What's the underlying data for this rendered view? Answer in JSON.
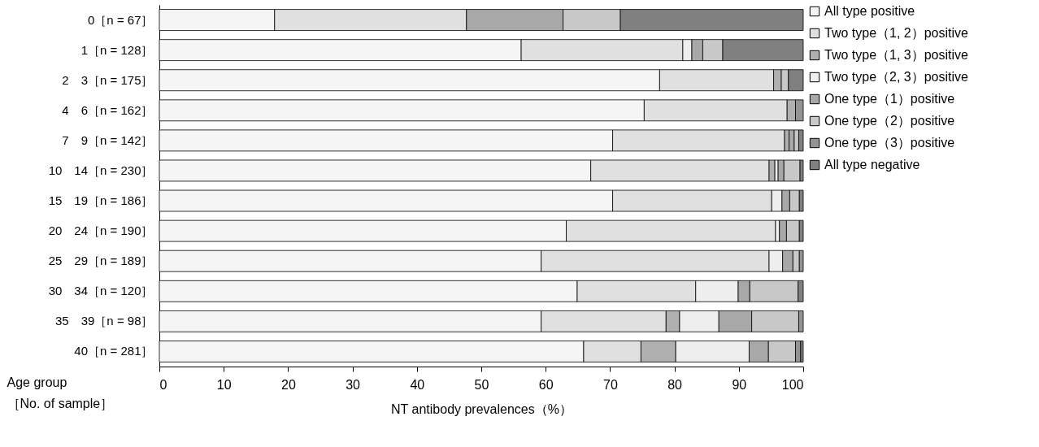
{
  "chart_data": {
    "type": "bar",
    "orientation": "horizontal",
    "stacked": true,
    "xlabel": "NT antibody prevalences（%）",
    "ylabel": "Age group\n［No. of sample］",
    "categories": [
      "0［n = 67］",
      "1［n = 128］",
      "2　3［n = 175］",
      "4　6［n = 162］",
      "7　9［n = 142］",
      "10　14［n = 230］",
      "15　19［n = 186］",
      "20　24［n = 190］",
      "25　29［n = 189］",
      "30　34［n = 120］",
      "35　39［n = 98］",
      "40［n = 281］"
    ],
    "series": [
      {
        "name": "All type positive",
        "color": "#f5f5f5",
        "values": [
          17.9,
          56.2,
          77.7,
          75.3,
          70.4,
          67.0,
          70.4,
          63.2,
          59.3,
          64.9,
          59.3,
          65.9
        ]
      },
      {
        "name": "Two type（1, 2）positive",
        "color": "#e0e0e0",
        "values": [
          29.8,
          25.1,
          17.7,
          22.2,
          26.7,
          27.7,
          24.7,
          32.5,
          35.4,
          18.4,
          19.4,
          8.9
        ]
      },
      {
        "name": "Two type（1, 3）positive",
        "color": "#b0b0b0",
        "values": [
          0,
          0,
          1.2,
          1.3,
          0.7,
          0.9,
          0,
          0,
          0,
          0,
          2.1,
          5.4
        ]
      },
      {
        "name": "Two type（2, 3）positive",
        "color": "#eeeeee",
        "values": [
          0,
          1.4,
          0,
          0,
          0,
          0.5,
          1.6,
          0.6,
          2.1,
          6.6,
          6.1,
          11.4
        ]
      },
      {
        "name": "One type（1）positive",
        "color": "#a8a8a8",
        "values": [
          15.0,
          1.7,
          0,
          0,
          0.8,
          0.9,
          1.2,
          1.1,
          1.6,
          1.8,
          5.1,
          3.0
        ]
      },
      {
        "name": "One type（2）positive",
        "color": "#c8c8c8",
        "values": [
          8.9,
          3.1,
          1.1,
          0,
          0.7,
          2.5,
          1.5,
          2.0,
          1.0,
          7.5,
          7.3,
          4.2
        ]
      },
      {
        "name": "One type（3）positive",
        "color": "#939393",
        "values": [
          0,
          0,
          0,
          1.2,
          0,
          0,
          0,
          0,
          0.6,
          0,
          0.7,
          0.8
        ]
      },
      {
        "name": "All type negative",
        "color": "#808080",
        "values": [
          28.4,
          12.5,
          2.3,
          0,
          0.7,
          0.5,
          0.6,
          0.6,
          0,
          0.8,
          0,
          0.4
        ]
      }
    ],
    "xlim": [
      0,
      100
    ],
    "xticks": [
      0,
      10,
      20,
      30,
      40,
      50,
      60,
      70,
      80,
      90,
      100
    ],
    "grid": false,
    "legend": "top right"
  }
}
